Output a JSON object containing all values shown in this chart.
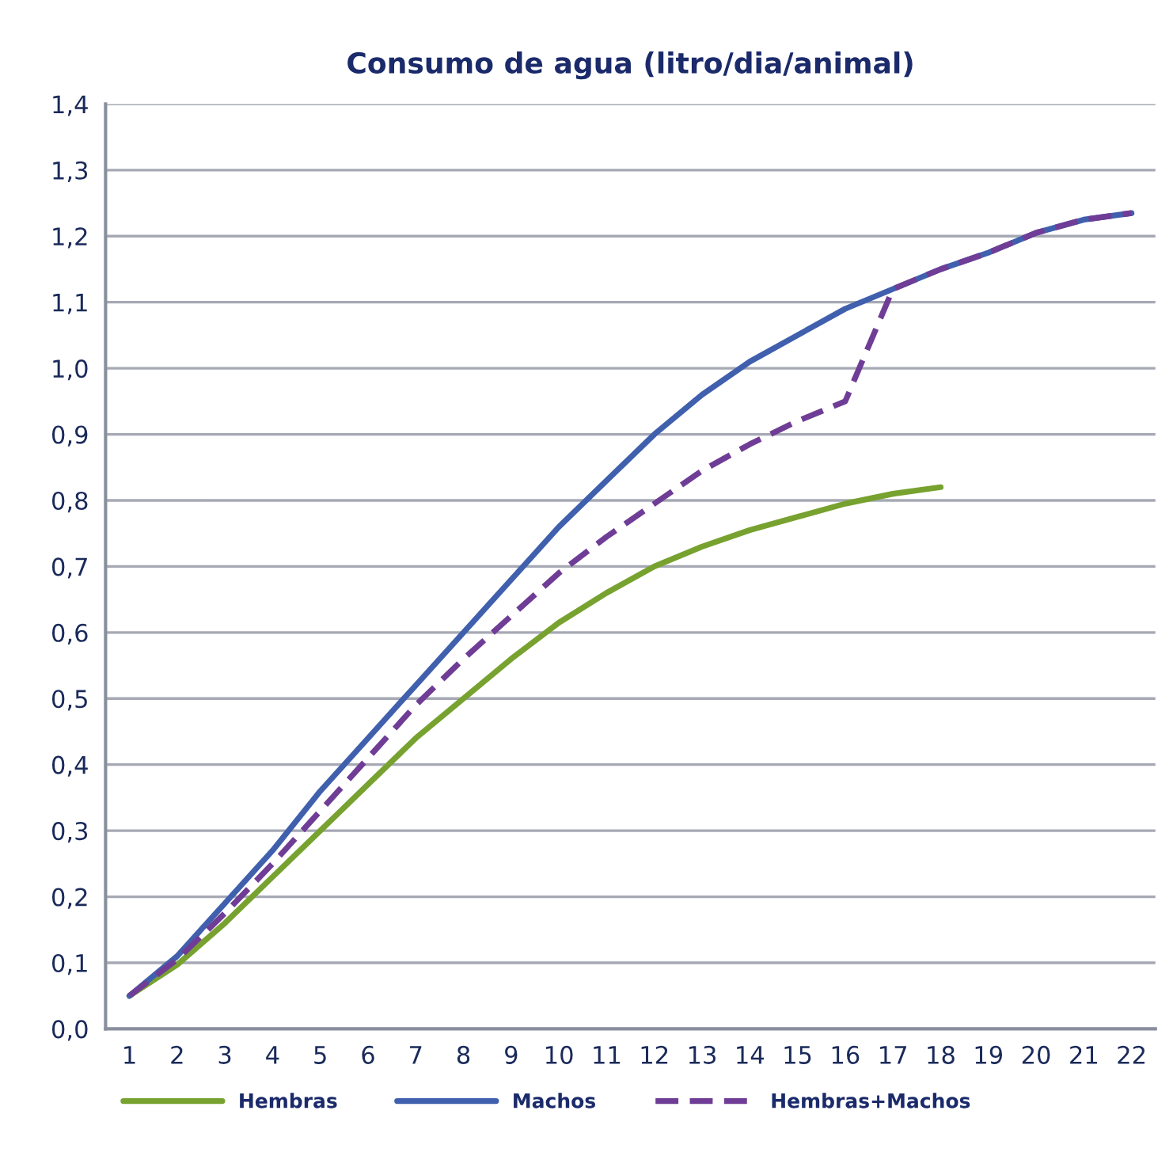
{
  "chart_data": {
    "type": "line",
    "title": "Consumo de agua (litro/dia/animal)",
    "categories": [
      "1",
      "2",
      "3",
      "4",
      "5",
      "6",
      "7",
      "8",
      "9",
      "10",
      "11",
      "12",
      "13",
      "14",
      "15",
      "16",
      "17",
      "18",
      "19",
      "20",
      "21",
      "22"
    ],
    "series": [
      {
        "name": "Hembras",
        "color": "#77a22f",
        "line_style": "solid",
        "values": [
          0.05,
          0.097,
          0.16,
          0.23,
          0.3,
          0.37,
          0.44,
          0.5,
          0.56,
          0.615,
          0.66,
          0.7,
          0.73,
          0.755,
          0.775,
          0.795,
          0.81,
          0.82,
          null,
          null,
          null,
          null
        ]
      },
      {
        "name": "Machos",
        "color": "#4060ae",
        "line_style": "solid",
        "values": [
          0.05,
          0.11,
          0.19,
          0.27,
          0.36,
          0.44,
          0.52,
          0.6,
          0.68,
          0.76,
          0.83,
          0.9,
          0.96,
          1.01,
          1.05,
          1.09,
          1.12,
          1.15,
          1.175,
          1.205,
          1.225,
          1.235
        ]
      },
      {
        "name": "Hembras+Machos",
        "color": "#6f3d96",
        "line_style": "dashed",
        "values": [
          0.05,
          0.105,
          0.175,
          0.25,
          0.33,
          0.41,
          0.49,
          0.56,
          0.625,
          0.69,
          0.745,
          0.795,
          0.845,
          0.885,
          0.92,
          0.95,
          1.12,
          1.15,
          1.175,
          1.205,
          1.225,
          1.235
        ]
      }
    ],
    "ylim": [
      0,
      1.4
    ],
    "yticks": [
      {
        "value": 0,
        "label": "0,0"
      },
      {
        "value": 0.1,
        "label": "0,1"
      },
      {
        "value": 0.2,
        "label": "0,2"
      },
      {
        "value": 0.3,
        "label": "0,3"
      },
      {
        "value": 0.4,
        "label": "0,4"
      },
      {
        "value": 0.5,
        "label": "0,5"
      },
      {
        "value": 0.6,
        "label": "0,6"
      },
      {
        "value": 0.7,
        "label": "0,7"
      },
      {
        "value": 0.8,
        "label": "0,8"
      },
      {
        "value": 0.9,
        "label": "0,9"
      },
      {
        "value": 1.0,
        "label": "1,0"
      },
      {
        "value": 1.1,
        "label": "1,1"
      },
      {
        "value": 1.2,
        "label": "1,2"
      },
      {
        "value": 1.3,
        "label": "1,3"
      },
      {
        "value": 1.4,
        "label": "1,4"
      }
    ],
    "grid": "y",
    "legend": "bottom",
    "marker": "none"
  }
}
